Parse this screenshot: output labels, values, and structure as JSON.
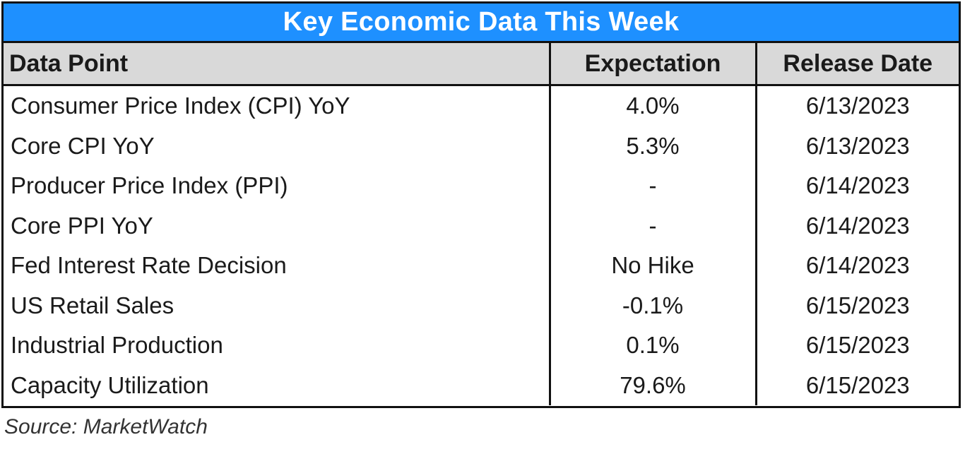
{
  "title": "Key Economic Data This Week",
  "columns": [
    "Data Point",
    "Expectation",
    "Release Date"
  ],
  "rows": [
    {
      "data_point": "Consumer Price Index (CPI) YoY",
      "expectation": "4.0%",
      "release_date": "6/13/2023"
    },
    {
      "data_point": "Core CPI YoY",
      "expectation": "5.3%",
      "release_date": "6/13/2023"
    },
    {
      "data_point": "Producer Price Index (PPI)",
      "expectation": "-",
      "release_date": "6/14/2023"
    },
    {
      "data_point": "Core PPI YoY",
      "expectation": "-",
      "release_date": "6/14/2023"
    },
    {
      "data_point": "Fed Interest Rate Decision",
      "expectation": "No Hike",
      "release_date": "6/14/2023"
    },
    {
      "data_point": "US Retail Sales",
      "expectation": "-0.1%",
      "release_date": "6/15/2023"
    },
    {
      "data_point": "Industrial Production",
      "expectation": "0.1%",
      "release_date": "6/15/2023"
    },
    {
      "data_point": "Capacity Utilization",
      "expectation": "79.6%",
      "release_date": "6/15/2023"
    }
  ],
  "source": "Source: MarketWatch",
  "colors": {
    "title_background": "#1e90ff",
    "header_background": "#d9d9d9",
    "border": "#111111"
  }
}
